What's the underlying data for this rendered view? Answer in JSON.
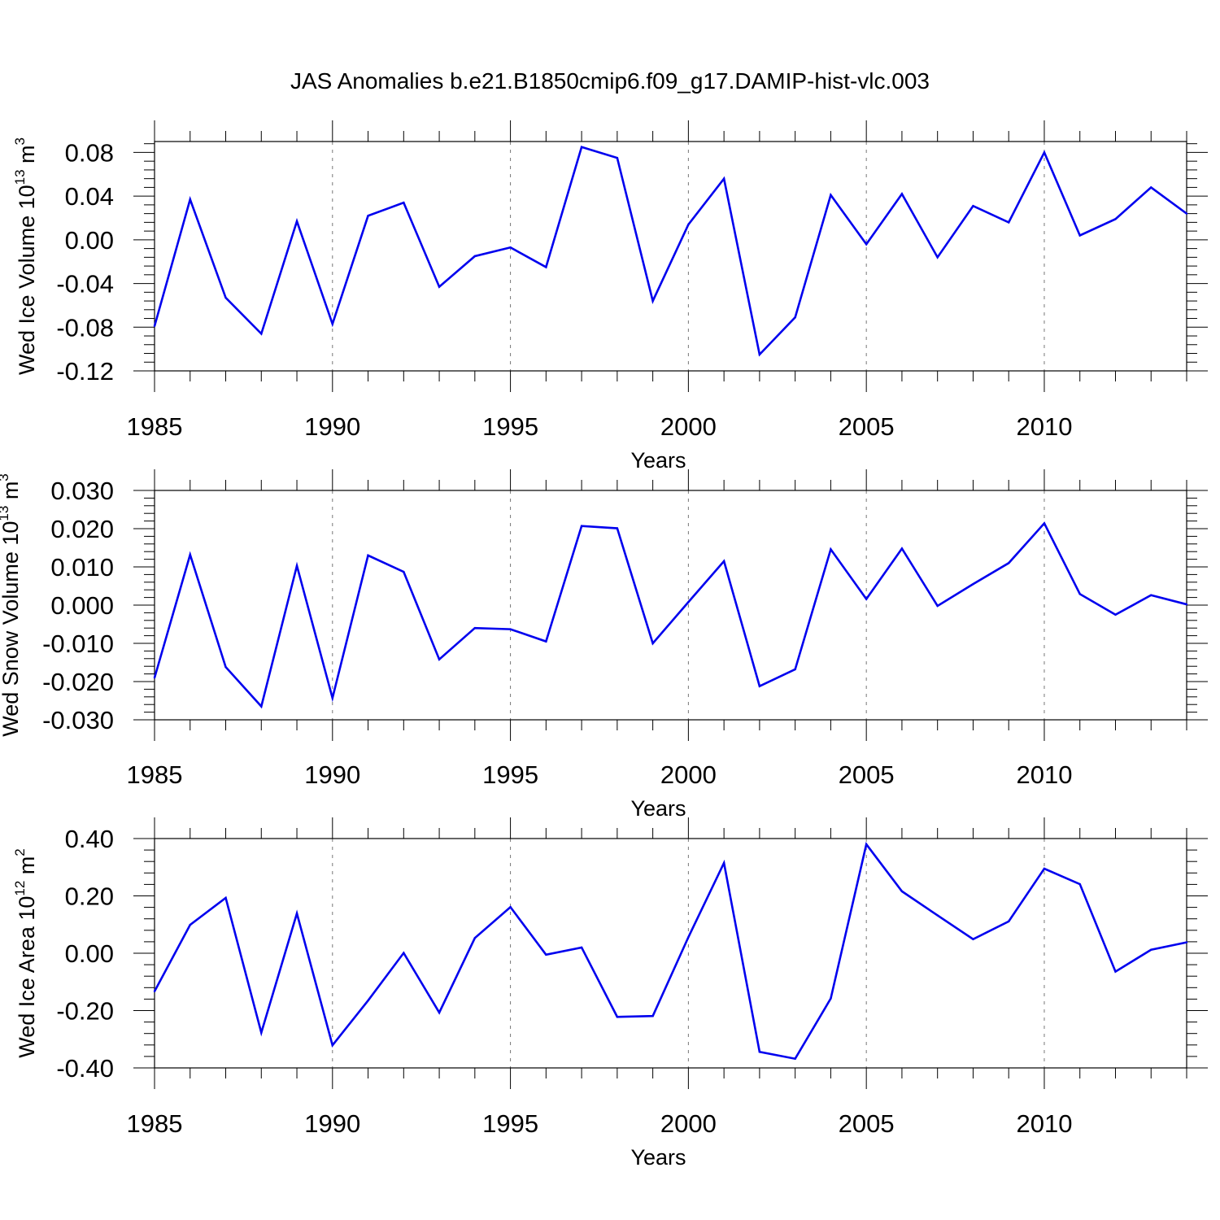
{
  "title": "JAS Anomalies b.e21.B1850cmip6.f09_g17.DAMIP-hist-vlc.003",
  "colors": {
    "line": "#0000ee",
    "axes": "#000000",
    "grid": "#777777"
  },
  "chart_data": [
    {
      "type": "line",
      "ylabel_main": "Wed Ice Volume 10",
      "ylabel_exp1": "13",
      "ylabel_unit": " m",
      "ylabel_exp2": "3",
      "xlabel": "Years",
      "xlim": [
        1985,
        2014
      ],
      "ylim": [
        -0.12,
        0.09
      ],
      "yticks": [
        -0.12,
        -0.08,
        -0.04,
        0.0,
        0.04,
        0.08
      ],
      "ytick_labels": [
        "-0.12",
        "-0.08",
        "-0.04",
        "0.00",
        "0.04",
        "0.08"
      ],
      "xticks": [
        1985,
        1990,
        1995,
        2000,
        2005,
        2010
      ],
      "xtick_labels": [
        "1985",
        "1990",
        "1995",
        "2000",
        "2005",
        "2010"
      ],
      "x": [
        1985,
        1986,
        1987,
        1988,
        1989,
        1990,
        1991,
        1992,
        1993,
        1994,
        1995,
        1996,
        1997,
        1998,
        1999,
        2000,
        2001,
        2002,
        2003,
        2004,
        2005,
        2006,
        2007,
        2008,
        2009,
        2010,
        2011,
        2012,
        2013,
        2014
      ],
      "values": [
        -0.079,
        0.037,
        -0.053,
        -0.086,
        0.017,
        -0.077,
        0.022,
        0.034,
        -0.043,
        -0.015,
        -0.007,
        -0.025,
        0.085,
        0.075,
        -0.056,
        0.014,
        0.056,
        -0.105,
        -0.071,
        0.041,
        -0.004,
        0.042,
        -0.016,
        0.031,
        0.016,
        0.08,
        0.004,
        0.019,
        0.048,
        0.024
      ]
    },
    {
      "type": "line",
      "ylabel_main": "Wed Snow Volume 10",
      "ylabel_exp1": "13",
      "ylabel_unit": " m",
      "ylabel_exp2": "3",
      "xlabel": "Years",
      "xlim": [
        1985,
        2014
      ],
      "ylim": [
        -0.03,
        0.03
      ],
      "yticks": [
        -0.03,
        -0.02,
        -0.01,
        0.0,
        0.01,
        0.02,
        0.03
      ],
      "ytick_labels": [
        "-0.030",
        "-0.020",
        "-0.010",
        "0.000",
        "0.010",
        "0.020",
        "0.030"
      ],
      "xticks": [
        1985,
        1990,
        1995,
        2000,
        2005,
        2010
      ],
      "xtick_labels": [
        "1985",
        "1990",
        "1995",
        "2000",
        "2005",
        "2010"
      ],
      "x": [
        1985,
        1986,
        1987,
        1988,
        1989,
        1990,
        1991,
        1992,
        1993,
        1994,
        1995,
        1996,
        1997,
        1998,
        1999,
        2000,
        2001,
        2002,
        2003,
        2004,
        2005,
        2006,
        2007,
        2008,
        2009,
        2010,
        2011,
        2012,
        2013,
        2014
      ],
      "values": [
        -0.019,
        0.0132,
        -0.0162,
        -0.0265,
        0.0103,
        -0.0243,
        0.013,
        0.0087,
        -0.0142,
        -0.006,
        -0.0063,
        -0.0095,
        0.0207,
        0.0201,
        -0.01,
        0.0008,
        0.0115,
        -0.0212,
        -0.0168,
        0.0146,
        0.0016,
        0.0148,
        -0.0002,
        0.0055,
        0.011,
        0.0214,
        0.0029,
        -0.0025,
        0.0026,
        0.0002
      ]
    },
    {
      "type": "line",
      "ylabel_main": "Wed Ice Area 10",
      "ylabel_exp1": "12",
      "ylabel_unit": " m",
      "ylabel_exp2": "2",
      "xlabel": "Years",
      "xlim": [
        1985,
        2014
      ],
      "ylim": [
        -0.4,
        0.4
      ],
      "yticks": [
        -0.4,
        -0.2,
        0.0,
        0.2,
        0.4
      ],
      "ytick_labels": [
        "-0.40",
        "-0.20",
        "0.00",
        "0.20",
        "0.40"
      ],
      "xticks": [
        1985,
        1990,
        1995,
        2000,
        2005,
        2010
      ],
      "xtick_labels": [
        "1985",
        "1990",
        "1995",
        "2000",
        "2005",
        "2010"
      ],
      "x": [
        1985,
        1986,
        1987,
        1988,
        1989,
        1990,
        1991,
        1992,
        1993,
        1994,
        1995,
        1996,
        1997,
        1998,
        1999,
        2000,
        2001,
        2002,
        2003,
        2004,
        2005,
        2006,
        2007,
        2008,
        2009,
        2010,
        2011,
        2012,
        2013,
        2014
      ],
      "values": [
        -0.133,
        0.099,
        0.193,
        -0.277,
        0.139,
        -0.321,
        -0.165,
        0.001,
        -0.207,
        0.053,
        0.161,
        -0.005,
        0.02,
        -0.222,
        -0.219,
        0.056,
        0.315,
        -0.344,
        -0.368,
        -0.158,
        0.38,
        0.216,
        0.132,
        0.049,
        0.111,
        0.295,
        0.241,
        -0.064,
        0.012,
        0.038
      ]
    }
  ]
}
